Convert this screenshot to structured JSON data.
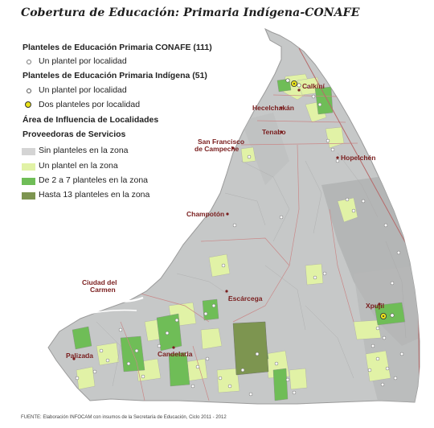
{
  "title": "Cobertura de Educación: Primaria Indígena-CONAFE",
  "legend": {
    "conafe_heading": "Planteles de Educación Primaria  CONAFE (111)",
    "conafe_item": "Un plantel por localidad",
    "indigena_heading": "Planteles de Educación Primaria  Indígena (51)",
    "indigena_item_one": "Un plantel por localidad",
    "indigena_item_two": "Dos planteles por localidad",
    "area_heading_line1": "Área de Influencia de Localidades",
    "area_heading_line2": "Proveedoras de Servicios",
    "area_items": [
      {
        "label": "Sin planteles en la zona",
        "color": "#d4d4d4"
      },
      {
        "label": "Un plantel en la zona",
        "color": "#e1f2a6"
      },
      {
        "label": "De 2 a 7 planteles en la zona",
        "color": "#6fbd57"
      },
      {
        "label": "Hasta 13 planteles en la zona",
        "color": "#7d9550"
      }
    ]
  },
  "cities": {
    "calkini": "Calkiní",
    "hecelchakan": "Hecelchakán",
    "tenabo": "Tenabo",
    "san_francisco_1": "San Francisco",
    "san_francisco_2": "de Campeche",
    "hopelchen": "Hopelchén",
    "champoton": "Champotón",
    "ciudad_carmen_1": "Ciudad del",
    "ciudad_carmen_2": "Carmen",
    "escarcega": "Escárcega",
    "xpujil": "Xpujil",
    "candelaria": "Candelaria",
    "palizada": "Palizada"
  },
  "source": "FUENTE: Elaboración INFOCAM con insumos de la Secretaría de Educación, Ciclo 2011 - 2012",
  "colors": {
    "land": "#c6c8c8",
    "relief": "#aeb0b0",
    "border_state": "#b66a6a",
    "border_muni": "#c98888",
    "city_label": "#7a1e1e",
    "indigena_dot": "#e9e21a"
  }
}
